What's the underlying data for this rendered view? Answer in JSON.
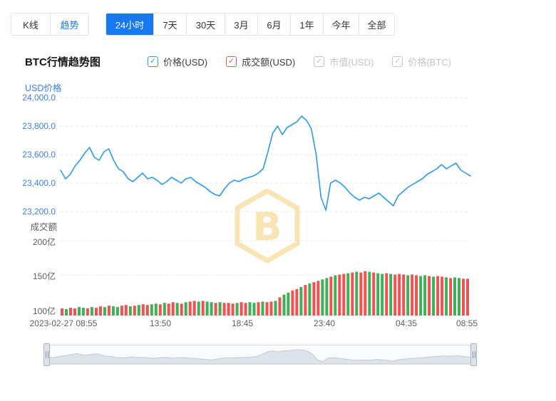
{
  "colors": {
    "accent": "#1678f2",
    "axisblue": "#3b7ff0",
    "line": "#2b9af3",
    "red": "#ee5252",
    "green": "#3faf5a",
    "gold": "#f2c14e"
  },
  "tabs": {
    "chart_types": [
      {
        "label": "K线",
        "active": false
      },
      {
        "label": "趋势",
        "active": true
      }
    ],
    "periods": [
      {
        "label": "24小时",
        "active": true
      },
      {
        "label": "7天",
        "active": false
      },
      {
        "label": "30天",
        "active": false
      },
      {
        "label": "3月",
        "active": false
      },
      {
        "label": "6月",
        "active": false
      },
      {
        "label": "1年",
        "active": false
      },
      {
        "label": "今年",
        "active": false
      },
      {
        "label": "全部",
        "active": false
      }
    ]
  },
  "header": {
    "title": "BTC行情趋势图",
    "legends": [
      {
        "label": "价格(USD)",
        "state": "active",
        "color": "#2b9af3"
      },
      {
        "label": "成交额(USD)",
        "state": "active",
        "color": "#ee5252"
      },
      {
        "label": "市值(USD)",
        "state": "disabled",
        "color": "#c0c4cc"
      },
      {
        "label": "价格(BTC)",
        "state": "disabled",
        "color": "#c0c4cc"
      }
    ]
  },
  "chart_data": {
    "type": "line+bar",
    "title": "BTC行情趋势图",
    "legend_position": "top",
    "grid": true,
    "price_axis": {
      "label": "USD价格",
      "ticks": [
        "24,000.0",
        "23,800.0",
        "23,600.0",
        "23,400.0",
        "23,200.0"
      ],
      "min": 23200,
      "max": 24000
    },
    "volume_axis": {
      "label": "成交额",
      "ticks": [
        "200亿",
        "150亿",
        "100亿"
      ],
      "min": 100,
      "max": 200,
      "unit": "亿"
    },
    "x_labels": [
      "2023-02-27 08:55",
      "13:50",
      "18:45",
      "23:40",
      "04:35",
      "08:55"
    ],
    "price_series": {
      "name": "价格(USD)",
      "color": "#2b9af3",
      "values": [
        23490,
        23430,
        23460,
        23520,
        23560,
        23610,
        23650,
        23580,
        23560,
        23620,
        23640,
        23560,
        23500,
        23480,
        23430,
        23410,
        23440,
        23470,
        23430,
        23440,
        23420,
        23390,
        23410,
        23440,
        23420,
        23400,
        23430,
        23440,
        23410,
        23390,
        23370,
        23340,
        23320,
        23310,
        23360,
        23400,
        23420,
        23410,
        23430,
        23440,
        23450,
        23470,
        23500,
        23620,
        23750,
        23800,
        23740,
        23790,
        23810,
        23830,
        23870,
        23840,
        23780,
        23600,
        23300,
        23210,
        23400,
        23420,
        23400,
        23370,
        23330,
        23300,
        23280,
        23300,
        23290,
        23310,
        23330,
        23300,
        23270,
        23240,
        23310,
        23340,
        23370,
        23390,
        23410,
        23430,
        23460,
        23480,
        23500,
        23530,
        23500,
        23520,
        23540,
        23490,
        23470,
        23450
      ]
    },
    "volume_series": {
      "name": "成交额(USD)",
      "colors": {
        "up": "#3faf5a",
        "down": "#ee5252"
      },
      "pattern": "rgrrggrgrrgrggrrgrgrrggrgrrgrgrrgrggrgrr",
      "values": [
        102,
        101,
        103,
        102,
        104,
        103,
        102,
        104,
        103,
        105,
        104,
        106,
        105,
        104,
        106,
        107,
        105,
        106,
        107,
        108,
        107,
        108,
        109,
        108,
        110,
        109,
        111,
        110,
        109,
        111,
        112,
        113,
        112,
        113,
        112,
        111,
        110,
        111,
        110,
        110,
        109,
        110,
        111,
        110,
        111,
        110,
        111,
        112,
        111,
        112,
        113,
        118,
        122,
        125,
        128,
        130,
        133,
        136,
        138,
        140,
        142,
        144,
        146,
        148,
        150,
        151,
        152,
        153,
        154,
        155,
        154,
        156,
        155,
        154,
        153,
        152,
        153,
        152,
        151,
        152,
        151,
        150,
        151,
        150,
        149,
        150,
        149,
        148,
        149,
        148,
        147,
        146,
        147,
        146,
        145,
        145
      ]
    }
  }
}
